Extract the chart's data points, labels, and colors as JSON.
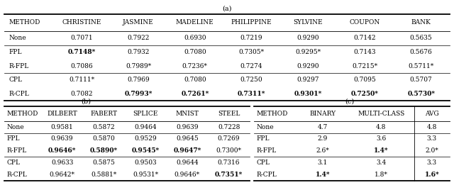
{
  "title_a": "(a)",
  "title_b": "(b)",
  "title_c": "(c)",
  "table_a_headers": [
    "Method",
    "Christine",
    "Jasmine",
    "Madeline",
    "Philippine",
    "Sylvine",
    "Coupon",
    "Bank"
  ],
  "table_a_data": [
    [
      "None",
      "0.7071",
      "0.7922",
      "0.6930",
      "0.7219",
      "0.9290",
      "0.7142",
      "0.5635"
    ],
    [
      "FPL",
      "0.7148*",
      "0.7932",
      "0.7080",
      "0.7305*",
      "0.9295*",
      "0.7143",
      "0.5676"
    ],
    [
      "R-FPL",
      "0.7086",
      "0.7989*",
      "0.7236*",
      "0.7274",
      "0.9290",
      "0.7215*",
      "0.5711*"
    ],
    [
      "CPL",
      "0.7111*",
      "0.7969",
      "0.7080",
      "0.7250",
      "0.9297",
      "0.7095",
      "0.5707"
    ],
    [
      "R-CPL",
      "0.7082",
      "0.7993*",
      "0.7261*",
      "0.7311*",
      "0.9301*",
      "0.7250*",
      "0.5730*"
    ]
  ],
  "table_a_bold": [
    [
      false,
      false,
      false,
      false,
      false,
      false,
      false,
      false
    ],
    [
      false,
      true,
      false,
      false,
      false,
      false,
      false,
      false
    ],
    [
      false,
      false,
      false,
      false,
      false,
      false,
      false,
      false
    ],
    [
      false,
      false,
      false,
      false,
      false,
      false,
      false,
      false
    ],
    [
      false,
      false,
      true,
      true,
      true,
      true,
      true,
      true
    ]
  ],
  "table_a_sep_after": [
    0,
    2
  ],
  "table_b_headers": [
    "Method",
    "Dilbert",
    "Fabert",
    "Splice",
    "MNIST",
    "Steel"
  ],
  "table_b_data": [
    [
      "None",
      "0.9581",
      "0.5872",
      "0.9464",
      "0.9639",
      "0.7228"
    ],
    [
      "FPL",
      "0.9639",
      "0.5870",
      "0.9529",
      "0.9645",
      "0.7269"
    ],
    [
      "R-FPL",
      "0.9646*",
      "0.5890*",
      "0.9545*",
      "0.9647*",
      "0.7300*"
    ],
    [
      "CPL",
      "0.9633",
      "0.5875",
      "0.9503",
      "0.9644",
      "0.7316"
    ],
    [
      "R-CPL",
      "0.9642*",
      "0.5881*",
      "0.9531*",
      "0.9646*",
      "0.7351*"
    ]
  ],
  "table_b_bold": [
    [
      false,
      false,
      false,
      false,
      false,
      false
    ],
    [
      false,
      false,
      false,
      false,
      false,
      false
    ],
    [
      false,
      true,
      true,
      true,
      true,
      false
    ],
    [
      false,
      false,
      false,
      false,
      false,
      false
    ],
    [
      false,
      false,
      false,
      false,
      false,
      true
    ]
  ],
  "table_b_sep_after": [
    0,
    2
  ],
  "table_c_headers": [
    "Method",
    "Binary",
    "Multi-class",
    "Avg"
  ],
  "table_c_data": [
    [
      "None",
      "4.7",
      "4.8",
      "4.8"
    ],
    [
      "FPL",
      "2.9",
      "3.6",
      "3.3"
    ],
    [
      "R-FPL",
      "2.6*",
      "1.4*",
      "2.0*"
    ],
    [
      "CPL",
      "3.1",
      "3.4",
      "3.3"
    ],
    [
      "R-CPL",
      "1.4*",
      "1.8*",
      "1.6*"
    ]
  ],
  "table_c_bold": [
    [
      false,
      false,
      false,
      false
    ],
    [
      false,
      false,
      false,
      false
    ],
    [
      false,
      false,
      true,
      false
    ],
    [
      false,
      false,
      false,
      false
    ],
    [
      false,
      true,
      false,
      true
    ]
  ],
  "table_c_sep_after": [
    0,
    2
  ],
  "table_c_vline_before_col": 3
}
